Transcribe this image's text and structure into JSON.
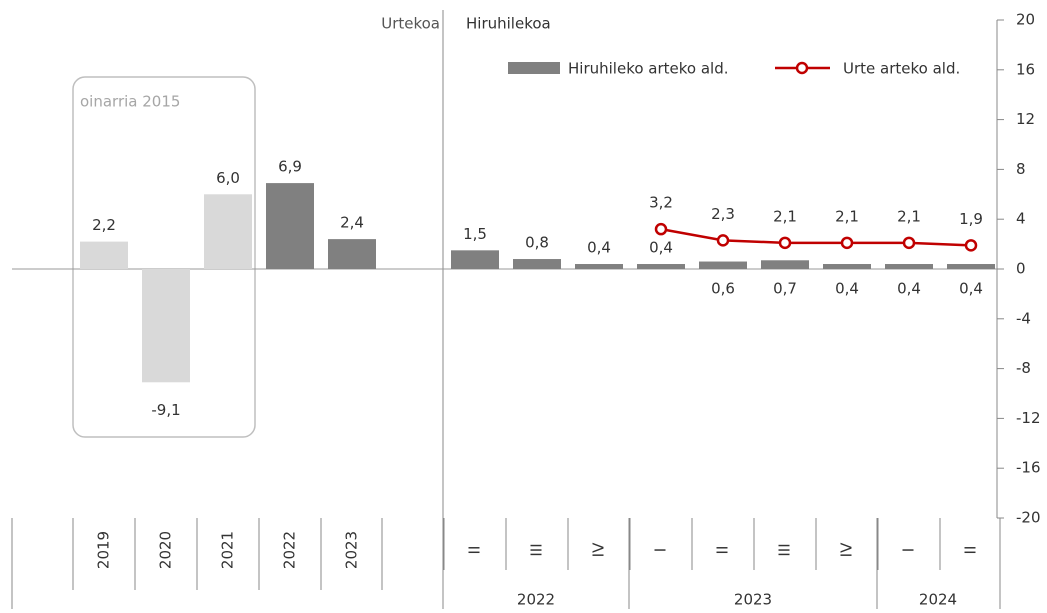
{
  "chart_data": {
    "type": "bar",
    "annotations": {
      "annual": "Urtekoa",
      "quarterly": "Hiruhilekoa",
      "base": "oinarria 2015"
    },
    "categories": [
      "2019",
      "2020",
      "2021",
      "2022",
      "2023",
      "II",
      "III",
      "IV",
      "I",
      "II",
      "III",
      "IV",
      "I",
      "II"
    ],
    "year_groups": [
      "2022",
      "2023",
      "2024"
    ],
    "series": [
      {
        "name": "Hiruhileko arteko ald.",
        "type": "bar",
        "color": "#808080",
        "colors": [
          "#d9d9d9",
          "#d9d9d9",
          "#d9d9d9",
          "#808080",
          "#808080",
          "#808080",
          "#808080",
          "#808080",
          "#808080",
          "#808080",
          "#808080",
          "#808080",
          "#808080",
          "#808080"
        ],
        "values": [
          2.2,
          -9.1,
          6.0,
          6.9,
          2.4,
          1.5,
          0.8,
          0.4,
          0.4,
          0.6,
          0.7,
          0.4,
          0.4,
          0.4
        ],
        "value_labels": [
          "2,2",
          "-9,1",
          "6,0",
          "6,9",
          "2,4",
          "1,5",
          "0,8",
          "0,4",
          "0,4",
          "0,6",
          "0,7",
          "0,4",
          "0,4",
          "0,4"
        ]
      },
      {
        "name": "Urte arteko ald.",
        "type": "line",
        "color": "#c00000",
        "values": [
          null,
          null,
          null,
          null,
          null,
          null,
          null,
          null,
          3.2,
          2.3,
          2.1,
          2.1,
          2.1,
          1.9
        ],
        "value_labels": [
          null,
          null,
          null,
          null,
          null,
          null,
          null,
          null,
          "3,2",
          "2,3",
          "2,1",
          "2,1",
          "2,1",
          "1,9"
        ]
      }
    ],
    "ylim": [
      -20,
      20
    ],
    "yticks": [
      -20,
      -16,
      -12,
      -8,
      -4,
      0,
      4,
      8,
      12,
      16,
      20
    ]
  }
}
